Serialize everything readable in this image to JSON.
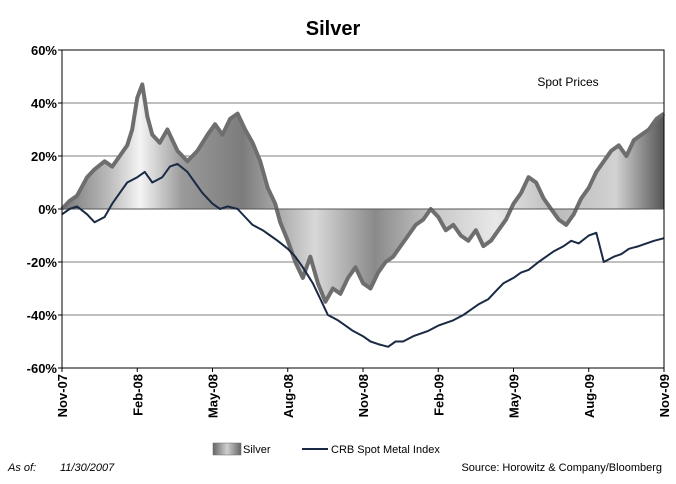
{
  "chart_data": {
    "type": "area",
    "title": "Silver",
    "annotation": "Spot Prices",
    "xlabel": "",
    "ylabel": "",
    "ylim": [
      -60,
      60
    ],
    "y_ticks": [
      "60%",
      "40%",
      "20%",
      "0%",
      "-20%",
      "-40%",
      "-60%"
    ],
    "y_tick_values": [
      60,
      40,
      20,
      0,
      -20,
      -40,
      -60
    ],
    "x_ticks": [
      "Nov-07",
      "Feb-08",
      "May-08",
      "Aug-08",
      "Nov-08",
      "Feb-09",
      "May-09",
      "Aug-09",
      "Nov-09"
    ],
    "x_tick_values": [
      0,
      3,
      6,
      9,
      12,
      15,
      18,
      21,
      24
    ],
    "xlim": [
      0,
      24
    ],
    "grid": "horizontal",
    "legend_position": "bottom",
    "series": [
      {
        "name": "Silver",
        "style": "area",
        "color": "#6e6e6e",
        "x": [
          0,
          0.3,
          0.6,
          1.0,
          1.3,
          1.7,
          2.0,
          2.3,
          2.6,
          2.8,
          3.0,
          3.2,
          3.4,
          3.6,
          3.9,
          4.2,
          4.6,
          5.0,
          5.4,
          5.8,
          6.1,
          6.4,
          6.7,
          7.0,
          7.3,
          7.6,
          7.9,
          8.2,
          8.5,
          8.7,
          9.0,
          9.3,
          9.6,
          9.9,
          10.2,
          10.5,
          10.8,
          11.1,
          11.4,
          11.7,
          12.0,
          12.3,
          12.6,
          12.9,
          13.2,
          13.5,
          13.8,
          14.1,
          14.4,
          14.7,
          15.0,
          15.3,
          15.6,
          15.9,
          16.2,
          16.5,
          16.8,
          17.1,
          17.4,
          17.7,
          18.0,
          18.3,
          18.6,
          18.9,
          19.2,
          19.5,
          19.8,
          20.1,
          20.4,
          20.7,
          21.0,
          21.3,
          21.6,
          21.9,
          22.2,
          22.5,
          22.8,
          23.1,
          23.4,
          23.7,
          24.0
        ],
        "values": [
          0,
          3,
          5,
          12,
          15,
          18,
          16,
          20,
          24,
          30,
          42,
          47,
          35,
          28,
          25,
          30,
          22,
          18,
          22,
          28,
          32,
          28,
          34,
          36,
          30,
          25,
          18,
          8,
          2,
          -5,
          -12,
          -20,
          -26,
          -18,
          -28,
          -35,
          -30,
          -32,
          -26,
          -22,
          -28,
          -30,
          -24,
          -20,
          -18,
          -14,
          -10,
          -6,
          -4,
          0,
          -3,
          -8,
          -6,
          -10,
          -12,
          -8,
          -14,
          -12,
          -8,
          -4,
          2,
          6,
          12,
          10,
          4,
          0,
          -4,
          -6,
          -2,
          4,
          8,
          14,
          18,
          22,
          24,
          20,
          26,
          28,
          30,
          34,
          36
        ]
      },
      {
        "name": "CRB Spot Metal Index",
        "style": "line",
        "color": "#1a2a44",
        "x": [
          0,
          0.3,
          0.6,
          1.0,
          1.3,
          1.7,
          2.0,
          2.3,
          2.6,
          3.0,
          3.3,
          3.6,
          4.0,
          4.3,
          4.6,
          5.0,
          5.3,
          5.6,
          6.0,
          6.3,
          6.6,
          7.0,
          7.3,
          7.6,
          8.0,
          8.3,
          8.6,
          9.0,
          9.3,
          9.6,
          10.0,
          10.3,
          10.6,
          11.0,
          11.3,
          11.6,
          12.0,
          12.3,
          12.6,
          13.0,
          13.3,
          13.6,
          14.0,
          14.3,
          14.6,
          15.0,
          15.3,
          15.6,
          16.0,
          16.3,
          16.6,
          17.0,
          17.3,
          17.6,
          18.0,
          18.3,
          18.6,
          19.0,
          19.3,
          19.6,
          20.0,
          20.3,
          20.6,
          21.0,
          21.3,
          21.6,
          21.8,
          22.0,
          22.3,
          22.6,
          23.0,
          23.3,
          23.6,
          24.0
        ],
        "values": [
          -2,
          0,
          1,
          -2,
          -5,
          -3,
          2,
          6,
          10,
          12,
          14,
          10,
          12,
          16,
          17,
          14,
          10,
          6,
          2,
          0,
          1,
          0,
          -3,
          -6,
          -8,
          -10,
          -12,
          -15,
          -18,
          -22,
          -28,
          -34,
          -40,
          -42,
          -44,
          -46,
          -48,
          -50,
          -51,
          -52,
          -50,
          -50,
          -48,
          -47,
          -46,
          -44,
          -43,
          -42,
          -40,
          -38,
          -36,
          -34,
          -31,
          -28,
          -26,
          -24,
          -23,
          -20,
          -18,
          -16,
          -14,
          -12,
          -13,
          -10,
          -9,
          -20,
          -19,
          -18,
          -17,
          -15,
          -14,
          -13,
          -12,
          -11
        ]
      }
    ]
  },
  "footer": {
    "as_of_label": "As of:",
    "as_of_date": "11/30/2007",
    "source": "Source: Horowitz & Company/Bloomberg"
  },
  "colors": {
    "silver_line": "#6e6e6e",
    "crb_line": "#1a2a44",
    "grid": "#808080",
    "background": "#ffffff"
  }
}
